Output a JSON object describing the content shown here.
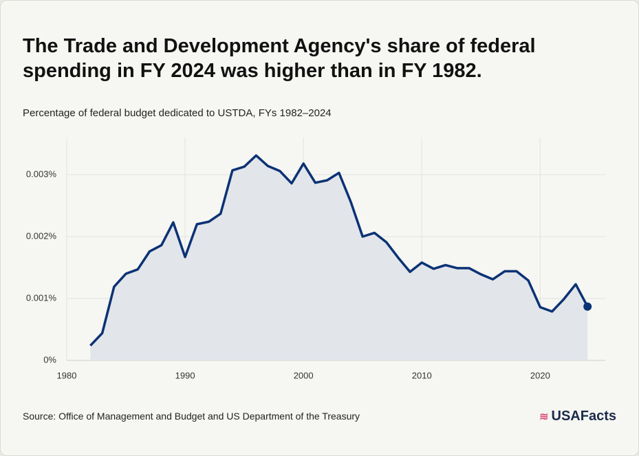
{
  "chart_data": {
    "type": "area-line",
    "title": "The Trade and Development Agency's share of federal spending in FY 2024 was higher than in FY 1982.",
    "subtitle": "Percentage of federal budget dedicated to USTDA, FYs 1982–2024",
    "source": "Source: Office of Management and Budget and US Department of the Treasury",
    "brand": "USAFacts",
    "x": [
      1982,
      1983,
      1984,
      1985,
      1986,
      1987,
      1988,
      1989,
      1990,
      1991,
      1992,
      1993,
      1994,
      1995,
      1996,
      1997,
      1998,
      1999,
      2000,
      2001,
      2002,
      2003,
      2004,
      2005,
      2006,
      2007,
      2008,
      2009,
      2010,
      2011,
      2012,
      2013,
      2014,
      2015,
      2016,
      2017,
      2018,
      2019,
      2020,
      2021,
      2022,
      2023,
      2024
    ],
    "series": [
      {
        "color": "#0b3275",
        "values": [
          0.00024,
          0.00044,
          0.00119,
          0.0014,
          0.00147,
          0.00176,
          0.00186,
          0.00223,
          0.00167,
          0.0022,
          0.00224,
          0.00237,
          0.00307,
          0.00313,
          0.00331,
          0.00314,
          0.00306,
          0.00286,
          0.00318,
          0.00287,
          0.00291,
          0.00303,
          0.00256,
          0.002,
          0.00206,
          0.00191,
          0.00166,
          0.00143,
          0.00158,
          0.00148,
          0.00154,
          0.00149,
          0.00149,
          0.00139,
          0.00131,
          0.00144,
          0.00144,
          0.00129,
          0.00086,
          0.00079,
          0.00099,
          0.00123,
          0.00087
        ]
      }
    ],
    "area_color": "#e2e5ea",
    "xlim": [
      1980,
      2025.5
    ],
    "xticks": [
      1980,
      1990,
      2000,
      2010,
      2020
    ],
    "ylim": [
      0,
      0.0036
    ],
    "yticks": [
      {
        "value": 0,
        "label": "0%"
      },
      {
        "value": 0.001,
        "label": "0.001%"
      },
      {
        "value": 0.002,
        "label": "0.002%"
      },
      {
        "value": 0.003,
        "label": "0.003%"
      }
    ],
    "grid": true
  }
}
